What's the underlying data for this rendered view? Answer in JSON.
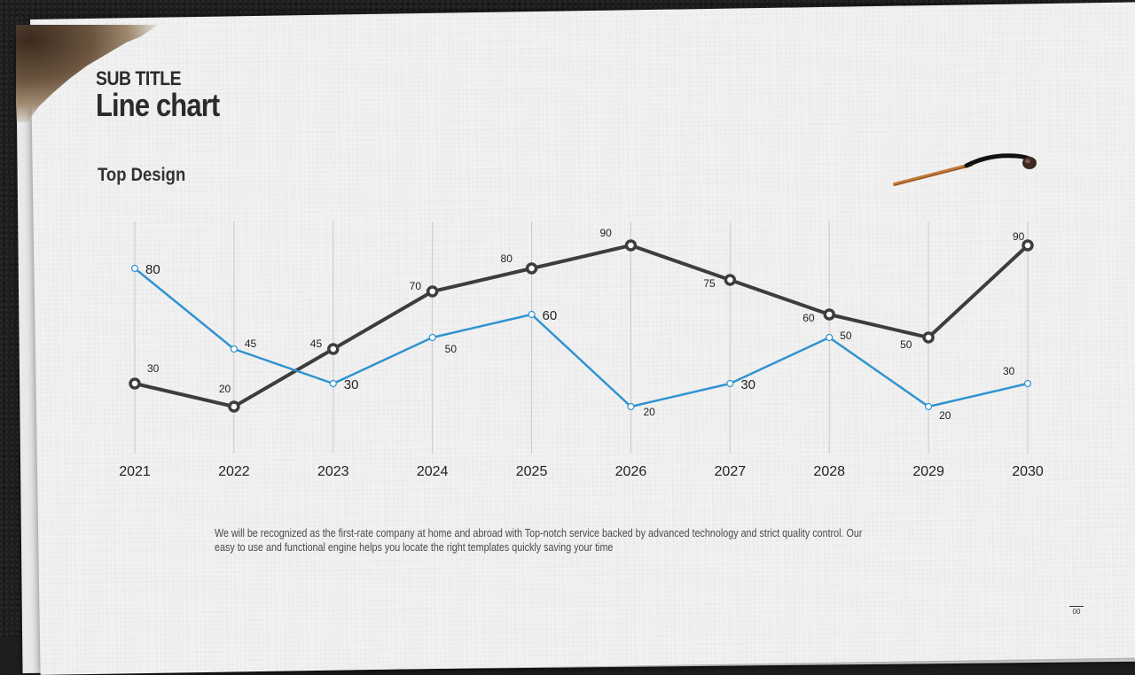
{
  "header": {
    "subtitle": "SUB TITLE",
    "title": "Line chart",
    "section_title": "Top Design"
  },
  "description": "We will be recognized as the first-rate company at home and abroad with Top-notch service backed by advanced technology and strict quality control. Our easy to use and functional engine helps you locate the right templates quickly saving your time",
  "page_number": "00",
  "colors": {
    "dark_series": "#3d3d3d",
    "blue_series": "#2f93d1",
    "gridline": "#c9c9c9",
    "text": "#2b2b2b"
  },
  "chart_data": {
    "type": "line",
    "title": "",
    "xlabel": "",
    "ylabel": "",
    "categories": [
      "2021",
      "2022",
      "2023",
      "2024",
      "2025",
      "2026",
      "2027",
      "2028",
      "2029",
      "2030"
    ],
    "ylim": [
      0,
      100
    ],
    "grid": "vertical lines at each category",
    "legend": "none",
    "series": [
      {
        "values": [
          30,
          20,
          45,
          70,
          80,
          90,
          75,
          60,
          50,
          90
        ]
      },
      {
        "values": [
          80,
          45,
          30,
          50,
          60,
          20,
          30,
          50,
          20,
          30
        ]
      }
    ]
  }
}
